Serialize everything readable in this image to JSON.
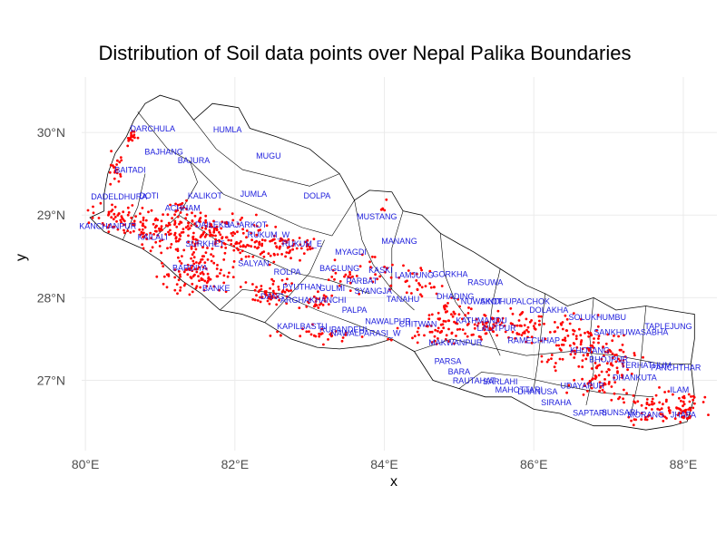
{
  "chart_data": {
    "type": "scatter",
    "title": "Distribution of Soil data points over Nepal Palika Boundaries",
    "xlabel": "x",
    "ylabel": "y",
    "xlim": [
      79.95,
      88.45
    ],
    "ylim": [
      26.15,
      30.67
    ],
    "x_ticks": [
      80,
      82,
      84,
      86,
      88
    ],
    "x_tick_labels": [
      "80°E",
      "82°E",
      "84°E",
      "86°E",
      "88°E"
    ],
    "y_ticks": [
      27,
      28,
      29,
      30
    ],
    "y_tick_labels": [
      "27°N",
      "28°N",
      "29°N",
      "30°N"
    ],
    "grid": true,
    "point_color": "#ff0000",
    "label_color": "#2020dd",
    "boundary": [
      [
        80.06,
        28.97
      ],
      [
        80.25,
        29.05
      ],
      [
        80.25,
        29.25
      ],
      [
        80.3,
        29.5
      ],
      [
        80.4,
        29.75
      ],
      [
        80.55,
        29.95
      ],
      [
        80.65,
        30.15
      ],
      [
        80.8,
        30.35
      ],
      [
        81.0,
        30.45
      ],
      [
        81.25,
        30.38
      ],
      [
        81.45,
        30.15
      ],
      [
        81.7,
        30.35
      ],
      [
        82.05,
        30.3
      ],
      [
        82.2,
        30.05
      ],
      [
        82.55,
        29.95
      ],
      [
        83.0,
        29.8
      ],
      [
        83.4,
        29.5
      ],
      [
        83.6,
        29.18
      ],
      [
        83.8,
        29.3
      ],
      [
        84.1,
        29.28
      ],
      [
        84.25,
        29.05
      ],
      [
        84.5,
        29.0
      ],
      [
        84.75,
        28.78
      ],
      [
        85.0,
        28.65
      ],
      [
        85.2,
        28.55
      ],
      [
        85.55,
        28.35
      ],
      [
        85.9,
        28.15
      ],
      [
        86.15,
        28.05
      ],
      [
        86.45,
        27.9
      ],
      [
        86.8,
        28.0
      ],
      [
        87.1,
        27.85
      ],
      [
        87.5,
        27.9
      ],
      [
        87.8,
        27.85
      ],
      [
        88.15,
        27.8
      ],
      [
        88.15,
        27.5
      ],
      [
        88.1,
        27.2
      ],
      [
        88.15,
        26.8
      ],
      [
        88.05,
        26.5
      ],
      [
        87.85,
        26.45
      ],
      [
        87.5,
        26.4
      ],
      [
        87.15,
        26.45
      ],
      [
        86.8,
        26.45
      ],
      [
        86.35,
        26.6
      ],
      [
        86.0,
        26.65
      ],
      [
        85.7,
        26.8
      ],
      [
        85.35,
        26.8
      ],
      [
        85.0,
        26.9
      ],
      [
        84.65,
        27.0
      ],
      [
        84.4,
        27.35
      ],
      [
        84.1,
        27.5
      ],
      [
        83.8,
        27.42
      ],
      [
        83.4,
        27.38
      ],
      [
        83.1,
        27.4
      ],
      [
        82.75,
        27.5
      ],
      [
        82.4,
        27.7
      ],
      [
        82.1,
        27.8
      ],
      [
        81.8,
        27.85
      ],
      [
        81.55,
        28.05
      ],
      [
        81.3,
        28.2
      ],
      [
        81.0,
        28.45
      ],
      [
        80.75,
        28.6
      ],
      [
        80.5,
        28.7
      ],
      [
        80.25,
        28.8
      ],
      [
        80.06,
        28.97
      ]
    ],
    "internal_lines": [
      [
        [
          80.7,
          30.25
        ],
        [
          81.1,
          29.8
        ],
        [
          81.4,
          29.65
        ],
        [
          81.5,
          29.4
        ],
        [
          81.25,
          29.0
        ],
        [
          80.95,
          28.75
        ]
      ],
      [
        [
          81.45,
          30.15
        ],
        [
          81.75,
          29.8
        ],
        [
          82.1,
          29.55
        ],
        [
          82.55,
          29.45
        ],
        [
          83.0,
          29.35
        ],
        [
          83.4,
          29.5
        ]
      ],
      [
        [
          81.4,
          29.65
        ],
        [
          81.85,
          29.25
        ],
        [
          82.4,
          29.05
        ],
        [
          82.9,
          28.85
        ],
        [
          83.3,
          28.75
        ],
        [
          83.6,
          29.18
        ]
      ],
      [
        [
          81.25,
          29.0
        ],
        [
          81.75,
          28.7
        ],
        [
          82.3,
          28.5
        ],
        [
          82.8,
          28.3
        ],
        [
          83.3,
          28.2
        ],
        [
          83.8,
          28.05
        ]
      ],
      [
        [
          83.6,
          29.18
        ],
        [
          83.7,
          28.7
        ],
        [
          83.85,
          28.4
        ],
        [
          84.1,
          28.1
        ]
      ],
      [
        [
          84.25,
          29.05
        ],
        [
          84.1,
          28.6
        ],
        [
          84.1,
          28.1
        ],
        [
          84.4,
          27.85
        ]
      ],
      [
        [
          84.75,
          28.78
        ],
        [
          84.8,
          28.3
        ],
        [
          84.95,
          27.95
        ],
        [
          85.15,
          27.7
        ]
      ],
      [
        [
          85.55,
          28.35
        ],
        [
          85.45,
          27.95
        ],
        [
          85.4,
          27.6
        ],
        [
          85.55,
          27.3
        ]
      ],
      [
        [
          86.15,
          28.05
        ],
        [
          86.1,
          27.6
        ],
        [
          86.05,
          27.2
        ],
        [
          86.0,
          26.9
        ]
      ],
      [
        [
          86.8,
          28.0
        ],
        [
          86.75,
          27.5
        ],
        [
          86.8,
          27.1
        ],
        [
          86.7,
          26.7
        ]
      ],
      [
        [
          87.5,
          27.9
        ],
        [
          87.45,
          27.4
        ],
        [
          87.4,
          27.0
        ],
        [
          87.3,
          26.6
        ]
      ],
      [
        [
          81.8,
          27.85
        ],
        [
          82.1,
          28.1
        ],
        [
          82.6,
          28.05
        ],
        [
          83.1,
          27.85
        ],
        [
          83.55,
          27.7
        ],
        [
          84.1,
          27.5
        ]
      ],
      [
        [
          84.4,
          27.35
        ],
        [
          84.9,
          27.5
        ],
        [
          85.4,
          27.4
        ],
        [
          85.9,
          27.3
        ],
        [
          86.5,
          27.35
        ],
        [
          87.1,
          27.3
        ],
        [
          87.7,
          27.2
        ],
        [
          88.1,
          27.2
        ]
      ],
      [
        [
          85.0,
          26.9
        ],
        [
          85.3,
          27.1
        ],
        [
          85.8,
          27.05
        ],
        [
          86.3,
          26.95
        ],
        [
          86.9,
          26.85
        ],
        [
          87.6,
          26.8
        ]
      ],
      [
        [
          80.5,
          28.7
        ],
        [
          80.7,
          29.1
        ],
        [
          80.8,
          29.5
        ]
      ],
      [
        [
          82.4,
          27.7
        ],
        [
          82.7,
          28.0
        ],
        [
          83.0,
          28.3
        ],
        [
          83.2,
          28.7
        ]
      ]
    ],
    "clusters": [
      {
        "cx": 80.62,
        "cy": 29.93,
        "sx": 0.06,
        "sy": 0.05,
        "n": 18
      },
      {
        "cx": 80.41,
        "cy": 29.55,
        "sx": 0.07,
        "sy": 0.1,
        "n": 20
      },
      {
        "cx": 80.45,
        "cy": 28.95,
        "sx": 0.18,
        "sy": 0.08,
        "n": 60
      },
      {
        "cx": 80.9,
        "cy": 28.85,
        "sx": 0.15,
        "sy": 0.1,
        "n": 50
      },
      {
        "cx": 81.25,
        "cy": 29.1,
        "sx": 0.05,
        "sy": 0.04,
        "n": 14
      },
      {
        "cx": 81.55,
        "cy": 28.8,
        "sx": 0.3,
        "sy": 0.14,
        "n": 140
      },
      {
        "cx": 82.2,
        "cy": 28.65,
        "sx": 0.22,
        "sy": 0.1,
        "n": 70
      },
      {
        "cx": 82.75,
        "cy": 28.6,
        "sx": 0.15,
        "sy": 0.08,
        "n": 45
      },
      {
        "cx": 81.45,
        "cy": 28.3,
        "sx": 0.25,
        "sy": 0.14,
        "n": 110
      },
      {
        "cx": 82.5,
        "cy": 28.05,
        "sx": 0.14,
        "sy": 0.08,
        "n": 55
      },
      {
        "cx": 83.1,
        "cy": 27.95,
        "sx": 0.1,
        "sy": 0.06,
        "n": 25
      },
      {
        "cx": 83.2,
        "cy": 27.55,
        "sx": 0.35,
        "sy": 0.05,
        "n": 30
      },
      {
        "cx": 83.7,
        "cy": 28.3,
        "sx": 0.2,
        "sy": 0.1,
        "n": 35
      },
      {
        "cx": 84.4,
        "cy": 28.2,
        "sx": 0.15,
        "sy": 0.1,
        "n": 30
      },
      {
        "cx": 84.9,
        "cy": 27.8,
        "sx": 0.15,
        "sy": 0.12,
        "n": 45
      },
      {
        "cx": 84.6,
        "cy": 27.55,
        "sx": 0.2,
        "sy": 0.08,
        "n": 30
      },
      {
        "cx": 85.4,
        "cy": 27.65,
        "sx": 0.2,
        "sy": 0.08,
        "n": 55
      },
      {
        "cx": 85.9,
        "cy": 27.65,
        "sx": 0.15,
        "sy": 0.1,
        "n": 40
      },
      {
        "cx": 86.6,
        "cy": 27.45,
        "sx": 0.25,
        "sy": 0.15,
        "n": 100
      },
      {
        "cx": 87.1,
        "cy": 27.25,
        "sx": 0.15,
        "sy": 0.12,
        "n": 40
      },
      {
        "cx": 86.9,
        "cy": 26.95,
        "sx": 0.2,
        "sy": 0.1,
        "n": 50
      },
      {
        "cx": 87.7,
        "cy": 26.7,
        "sx": 0.25,
        "sy": 0.1,
        "n": 70
      },
      {
        "cx": 88.0,
        "cy": 26.7,
        "sx": 0.06,
        "sy": 0.1,
        "n": 30
      },
      {
        "cx": 84.0,
        "cy": 29.1,
        "sx": 0.03,
        "sy": 0.05,
        "n": 5
      }
    ],
    "district_labels": [
      {
        "text": "DARCHULA",
        "x": 80.9,
        "y": 30.01
      },
      {
        "text": "HUMLA",
        "x": 81.9,
        "y": 30.0
      },
      {
        "text": "BAJHANG",
        "x": 81.05,
        "y": 29.73
      },
      {
        "text": "BAJURA",
        "x": 81.45,
        "y": 29.63
      },
      {
        "text": "MUGU",
        "x": 82.45,
        "y": 29.68
      },
      {
        "text": "BAITADI",
        "x": 80.6,
        "y": 29.51
      },
      {
        "text": "DADELDHURA",
        "x": 80.45,
        "y": 29.19
      },
      {
        "text": "DOTI",
        "x": 80.85,
        "y": 29.2
      },
      {
        "text": "KALIKOT",
        "x": 81.6,
        "y": 29.2
      },
      {
        "text": "JUMLA",
        "x": 82.25,
        "y": 29.22
      },
      {
        "text": "DOLPA",
        "x": 83.1,
        "y": 29.2
      },
      {
        "text": "ACHHAM",
        "x": 81.3,
        "y": 29.05
      },
      {
        "text": "MUSTANG",
        "x": 83.9,
        "y": 28.95
      },
      {
        "text": "KANCHANPUR",
        "x": 80.3,
        "y": 28.83
      },
      {
        "text": "KAILALI",
        "x": 80.9,
        "y": 28.7
      },
      {
        "text": "DAILEKH",
        "x": 81.7,
        "y": 28.85
      },
      {
        "text": "JAJARKOT",
        "x": 82.15,
        "y": 28.85
      },
      {
        "text": "RUKUM_W",
        "x": 82.45,
        "y": 28.73
      },
      {
        "text": "RUKUM_E",
        "x": 82.9,
        "y": 28.62
      },
      {
        "text": "MANANG",
        "x": 84.2,
        "y": 28.65
      },
      {
        "text": "MYAGDI",
        "x": 83.55,
        "y": 28.52
      },
      {
        "text": "SURKHET",
        "x": 81.6,
        "y": 28.62
      },
      {
        "text": "SALYAN",
        "x": 82.25,
        "y": 28.38
      },
      {
        "text": "BARDIYA",
        "x": 81.4,
        "y": 28.33
      },
      {
        "text": "ROLPA",
        "x": 82.7,
        "y": 28.28
      },
      {
        "text": "BAGLUNG",
        "x": 83.4,
        "y": 28.32
      },
      {
        "text": "KASKI",
        "x": 83.95,
        "y": 28.3
      },
      {
        "text": "LAMJUNG",
        "x": 84.4,
        "y": 28.24
      },
      {
        "text": "GORKHA",
        "x": 84.88,
        "y": 28.25
      },
      {
        "text": "PARBAT",
        "x": 83.7,
        "y": 28.17
      },
      {
        "text": "RASUWA",
        "x": 85.35,
        "y": 28.15
      },
      {
        "text": "BANKE",
        "x": 81.75,
        "y": 28.08
      },
      {
        "text": "PYUTHAN",
        "x": 82.9,
        "y": 28.1
      },
      {
        "text": "GULMI",
        "x": 83.3,
        "y": 28.08
      },
      {
        "text": "SYANGJA",
        "x": 83.85,
        "y": 28.05
      },
      {
        "text": "DANG",
        "x": 82.5,
        "y": 27.98
      },
      {
        "text": "ARGHAKHANCHI",
        "x": 83.05,
        "y": 27.94
      },
      {
        "text": "TANAHU",
        "x": 84.25,
        "y": 27.95
      },
      {
        "text": "DHADING",
        "x": 84.95,
        "y": 27.98
      },
      {
        "text": "NUWAKOT",
        "x": 85.3,
        "y": 27.92
      },
      {
        "text": "SINDHUPALCHOK",
        "x": 85.75,
        "y": 27.92
      },
      {
        "text": "DOLAKHA",
        "x": 86.2,
        "y": 27.82
      },
      {
        "text": "PALPA",
        "x": 83.6,
        "y": 27.82
      },
      {
        "text": "SOLUKHUMBU",
        "x": 86.85,
        "y": 27.73
      },
      {
        "text": "KATHMANDU",
        "x": 85.3,
        "y": 27.69
      },
      {
        "text": "NAWALPUR",
        "x": 84.05,
        "y": 27.68
      },
      {
        "text": "CHITWAN",
        "x": 84.45,
        "y": 27.65
      },
      {
        "text": "KAPILBASTU",
        "x": 82.9,
        "y": 27.62
      },
      {
        "text": "RUPANDEHI",
        "x": 83.45,
        "y": 27.58
      },
      {
        "text": "NAWALPARASI_W",
        "x": 83.75,
        "y": 27.54
      },
      {
        "text": "LALITPUR",
        "x": 85.5,
        "y": 27.6
      },
      {
        "text": "TAPLEJUNG",
        "x": 87.8,
        "y": 27.62
      },
      {
        "text": "SANKHUWASABHA",
        "x": 87.3,
        "y": 27.55
      },
      {
        "text": "MAKWANPUR",
        "x": 84.95,
        "y": 27.42
      },
      {
        "text": "RAMECHHAP",
        "x": 86.0,
        "y": 27.45
      },
      {
        "text": "KHOTANG",
        "x": 86.75,
        "y": 27.33
      },
      {
        "text": "BHOJPUR",
        "x": 87.0,
        "y": 27.22
      },
      {
        "text": "PARSA",
        "x": 84.85,
        "y": 27.2
      },
      {
        "text": "TERHATHUM",
        "x": 87.5,
        "y": 27.15
      },
      {
        "text": "PANCHTHAR",
        "x": 87.9,
        "y": 27.12
      },
      {
        "text": "DHANKUTA",
        "x": 87.35,
        "y": 27.0
      },
      {
        "text": "BARA",
        "x": 85.0,
        "y": 27.07
      },
      {
        "text": "RAUTAHAT",
        "x": 85.2,
        "y": 26.96
      },
      {
        "text": "SARLAHI",
        "x": 85.55,
        "y": 26.95
      },
      {
        "text": "MAHOTTARI",
        "x": 85.8,
        "y": 26.85
      },
      {
        "text": "DHANUSA",
        "x": 86.05,
        "y": 26.83
      },
      {
        "text": "UDAYAPUR",
        "x": 86.65,
        "y": 26.9
      },
      {
        "text": "SIRAHA",
        "x": 86.3,
        "y": 26.7
      },
      {
        "text": "ILAM",
        "x": 87.95,
        "y": 26.85
      },
      {
        "text": "SAPTARI",
        "x": 86.75,
        "y": 26.57
      },
      {
        "text": "SUNSARI",
        "x": 87.15,
        "y": 26.58
      },
      {
        "text": "MORANG",
        "x": 87.5,
        "y": 26.55
      },
      {
        "text": "JHAPA",
        "x": 88.0,
        "y": 26.55
      }
    ]
  }
}
